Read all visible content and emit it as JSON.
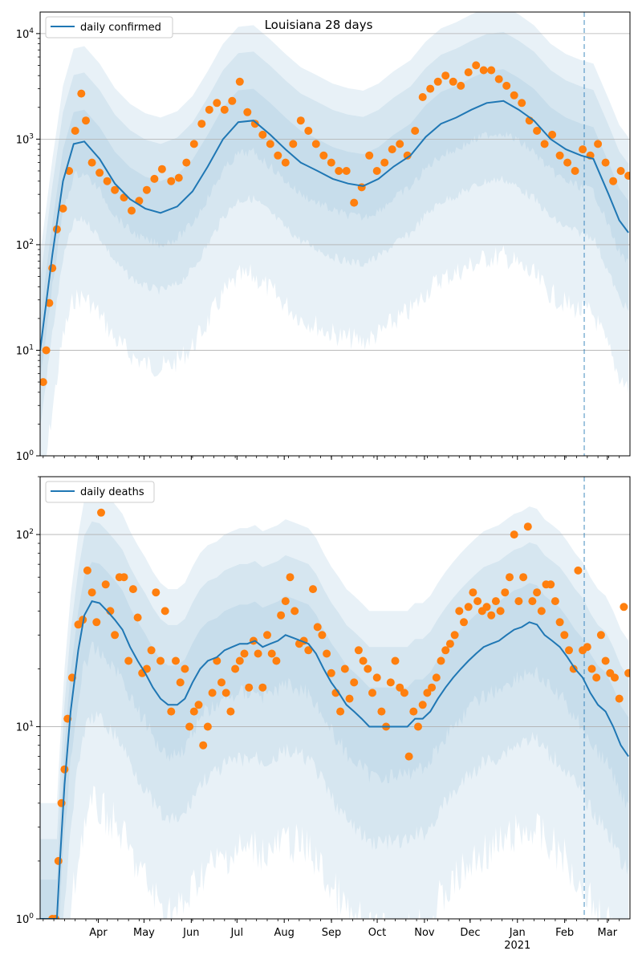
{
  "chart_data": [
    {
      "type": "line",
      "title": "Louisiana 28 days",
      "yscale": "log",
      "ylim": [
        1,
        16000
      ],
      "yticks": [
        1,
        10,
        100,
        1000,
        10000
      ],
      "ytick_labels": [
        "10^0",
        "10^1",
        "10^2",
        "10^3",
        "10^4"
      ],
      "grid": "y",
      "legend": "top-left",
      "series": [
        {
          "name": "daily confirmed",
          "type": "line",
          "color": "#1f77b4",
          "x": [
            "2020-03-07",
            "2020-03-15",
            "2020-03-22",
            "2020-03-29",
            "2020-04-05",
            "2020-04-15",
            "2020-04-25",
            "2020-05-05",
            "2020-05-15",
            "2020-05-25",
            "2020-06-05",
            "2020-06-15",
            "2020-06-25",
            "2020-07-05",
            "2020-07-15",
            "2020-07-25",
            "2020-08-05",
            "2020-08-15",
            "2020-08-25",
            "2020-09-05",
            "2020-09-15",
            "2020-09-25",
            "2020-10-05",
            "2020-10-15",
            "2020-10-25",
            "2020-11-05",
            "2020-11-15",
            "2020-11-25",
            "2020-12-05",
            "2020-12-15",
            "2020-12-25",
            "2021-01-05",
            "2021-01-15",
            "2021-01-25",
            "2021-02-05",
            "2021-02-15",
            "2021-02-25",
            "2021-03-05",
            "2021-03-15",
            "2021-03-22",
            "2021-03-28"
          ],
          "values": [
            10,
            80,
            400,
            900,
            950,
            650,
            380,
            270,
            220,
            200,
            230,
            320,
            550,
            1000,
            1450,
            1500,
            1100,
            800,
            600,
            500,
            420,
            380,
            360,
            420,
            550,
            700,
            1050,
            1400,
            1600,
            1900,
            2200,
            2300,
            1900,
            1500,
            1000,
            800,
            700,
            650,
            300,
            170,
            130
          ]
        },
        {
          "name": "",
          "type": "scatter",
          "color": "#ff7f0e",
          "x": [
            "2020-03-09",
            "2020-03-11",
            "2020-03-13",
            "2020-03-15",
            "2020-03-18",
            "2020-03-22",
            "2020-03-26",
            "2020-03-30",
            "2020-04-03",
            "2020-04-06",
            "2020-04-10",
            "2020-04-15",
            "2020-04-20",
            "2020-04-25",
            "2020-05-01",
            "2020-05-06",
            "2020-05-11",
            "2020-05-16",
            "2020-05-21",
            "2020-05-26",
            "2020-06-01",
            "2020-06-06",
            "2020-06-11",
            "2020-06-16",
            "2020-06-21",
            "2020-06-26",
            "2020-07-01",
            "2020-07-06",
            "2020-07-11",
            "2020-07-16",
            "2020-07-21",
            "2020-07-26",
            "2020-07-31",
            "2020-08-05",
            "2020-08-10",
            "2020-08-15",
            "2020-08-20",
            "2020-08-25",
            "2020-08-30",
            "2020-09-04",
            "2020-09-09",
            "2020-09-14",
            "2020-09-19",
            "2020-09-24",
            "2020-09-29",
            "2020-10-04",
            "2020-10-09",
            "2020-10-14",
            "2020-10-19",
            "2020-10-24",
            "2020-10-29",
            "2020-11-03",
            "2020-11-08",
            "2020-11-13",
            "2020-11-18",
            "2020-11-23",
            "2020-11-28",
            "2020-12-03",
            "2020-12-08",
            "2020-12-13",
            "2020-12-18",
            "2020-12-23",
            "2020-12-28",
            "2021-01-02",
            "2021-01-07",
            "2021-01-12",
            "2021-01-17",
            "2021-01-22",
            "2021-01-27",
            "2021-02-01",
            "2021-02-06",
            "2021-02-11",
            "2021-02-16",
            "2021-02-21",
            "2021-02-26",
            "2021-03-03",
            "2021-03-08",
            "2021-03-13",
            "2021-03-18",
            "2021-03-23",
            "2021-03-28"
          ],
          "values": [
            5,
            10,
            28,
            60,
            140,
            220,
            500,
            1200,
            2700,
            1500,
            600,
            480,
            400,
            330,
            280,
            210,
            260,
            330,
            420,
            520,
            400,
            430,
            600,
            900,
            1400,
            1900,
            2200,
            1900,
            2300,
            3500,
            1800,
            1400,
            1100,
            900,
            700,
            600,
            900,
            1500,
            1200,
            900,
            700,
            600,
            500,
            500,
            250,
            350,
            700,
            500,
            600,
            800,
            900,
            700,
            1200,
            2500,
            3000,
            3500,
            4000,
            3500,
            3200,
            4300,
            5000,
            4500,
            4500,
            3700,
            3200,
            2600,
            2200,
            1500,
            1200,
            900,
            1100,
            700,
            600,
            500,
            800,
            700,
            900,
            600,
            400,
            500,
            450
          ]
        }
      ]
    },
    {
      "type": "line",
      "title": "",
      "yscale": "log",
      "ylim": [
        1,
        200
      ],
      "yticks": [
        1,
        10,
        100
      ],
      "ytick_labels": [
        "10^0",
        "10^1",
        "10^2"
      ],
      "grid": "y",
      "legend": "top-left",
      "xlim": [
        "2020-03-07",
        "2021-03-29"
      ],
      "xtick_labels": [
        "Apr",
        "May",
        "Jun",
        "Jul",
        "Aug",
        "Sep",
        "Oct",
        "Nov",
        "Dec",
        "Jan",
        "Feb",
        "Mar"
      ],
      "xtick_year": "2021",
      "vline": "2021-02-27",
      "series": [
        {
          "name": "daily deaths",
          "type": "line",
          "color": "#1f77b4",
          "x": [
            "2020-03-07",
            "2020-03-18",
            "2020-03-20",
            "2020-03-23",
            "2020-03-27",
            "2020-04-01",
            "2020-04-05",
            "2020-04-10",
            "2020-04-15",
            "2020-04-20",
            "2020-04-25",
            "2020-04-30",
            "2020-05-05",
            "2020-05-10",
            "2020-05-15",
            "2020-05-20",
            "2020-05-25",
            "2020-05-30",
            "2020-06-05",
            "2020-06-10",
            "2020-06-15",
            "2020-06-20",
            "2020-06-25",
            "2020-07-01",
            "2020-07-06",
            "2020-07-11",
            "2020-07-16",
            "2020-07-21",
            "2020-07-26",
            "2020-07-31",
            "2020-08-05",
            "2020-08-10",
            "2020-08-15",
            "2020-08-20",
            "2020-08-25",
            "2020-08-30",
            "2020-09-04",
            "2020-09-09",
            "2020-09-14",
            "2020-09-19",
            "2020-09-24",
            "2020-09-29",
            "2020-10-04",
            "2020-10-09",
            "2020-10-14",
            "2020-10-19",
            "2020-10-24",
            "2020-10-29",
            "2020-11-03",
            "2020-11-08",
            "2020-11-13",
            "2020-11-18",
            "2020-11-23",
            "2020-11-28",
            "2020-12-03",
            "2020-12-08",
            "2020-12-13",
            "2020-12-18",
            "2020-12-23",
            "2020-12-28",
            "2021-01-02",
            "2021-01-07",
            "2021-01-12",
            "2021-01-17",
            "2021-01-22",
            "2021-01-27",
            "2021-02-01",
            "2021-02-06",
            "2021-02-11",
            "2021-02-16",
            "2021-02-21",
            "2021-02-26",
            "2021-03-03",
            "2021-03-08",
            "2021-03-13",
            "2021-03-18",
            "2021-03-23",
            "2021-03-28"
          ],
          "values": [
            1,
            1,
            2,
            5,
            12,
            25,
            38,
            45,
            44,
            40,
            36,
            32,
            26,
            22,
            19,
            16,
            14,
            13,
            13,
            14,
            17,
            20,
            22,
            23,
            25,
            26,
            27,
            27,
            28,
            26,
            27,
            28,
            30,
            29,
            28,
            27,
            24,
            20,
            17,
            15,
            13,
            12,
            11,
            10,
            10,
            10,
            10,
            10,
            10,
            11,
            11,
            12,
            14,
            16,
            18,
            20,
            22,
            24,
            26,
            27,
            28,
            30,
            32,
            33,
            35,
            34,
            30,
            28,
            26,
            23,
            20,
            18,
            15,
            13,
            12,
            10,
            8,
            7
          ]
        },
        {
          "name": "",
          "type": "scatter",
          "color": "#ff7f0e",
          "x": [
            "2020-03-15",
            "2020-03-17",
            "2020-03-19",
            "2020-03-21",
            "2020-03-23",
            "2020-03-25",
            "2020-03-28",
            "2020-04-01",
            "2020-04-04",
            "2020-04-07",
            "2020-04-10",
            "2020-04-13",
            "2020-04-16",
            "2020-04-19",
            "2020-04-22",
            "2020-04-25",
            "2020-04-28",
            "2020-05-01",
            "2020-05-04",
            "2020-05-07",
            "2020-05-10",
            "2020-05-13",
            "2020-05-16",
            "2020-05-19",
            "2020-05-22",
            "2020-05-25",
            "2020-05-28",
            "2020-06-01",
            "2020-06-04",
            "2020-06-07",
            "2020-06-10",
            "2020-06-13",
            "2020-06-16",
            "2020-06-19",
            "2020-06-22",
            "2020-06-25",
            "2020-06-28",
            "2020-07-01",
            "2020-07-04",
            "2020-07-07",
            "2020-07-10",
            "2020-07-13",
            "2020-07-16",
            "2020-07-19",
            "2020-07-22",
            "2020-07-25",
            "2020-07-28",
            "2020-07-31",
            "2020-08-03",
            "2020-08-06",
            "2020-08-09",
            "2020-08-12",
            "2020-08-15",
            "2020-08-18",
            "2020-08-21",
            "2020-08-24",
            "2020-08-27",
            "2020-08-30",
            "2020-09-02",
            "2020-09-05",
            "2020-09-08",
            "2020-09-11",
            "2020-09-14",
            "2020-09-17",
            "2020-09-20",
            "2020-09-23",
            "2020-09-26",
            "2020-09-29",
            "2020-10-02",
            "2020-10-05",
            "2020-10-08",
            "2020-10-11",
            "2020-10-14",
            "2020-10-17",
            "2020-10-20",
            "2020-10-23",
            "2020-10-26",
            "2020-10-29",
            "2020-11-01",
            "2020-11-04",
            "2020-11-07",
            "2020-11-10",
            "2020-11-13",
            "2020-11-16",
            "2020-11-19",
            "2020-11-22",
            "2020-11-25",
            "2020-11-28",
            "2020-12-01",
            "2020-12-04",
            "2020-12-07",
            "2020-12-10",
            "2020-12-13",
            "2020-12-16",
            "2020-12-19",
            "2020-12-22",
            "2020-12-25",
            "2020-12-28",
            "2020-12-31",
            "2021-01-03",
            "2021-01-06",
            "2021-01-09",
            "2021-01-12",
            "2021-01-15",
            "2021-01-18",
            "2021-01-21",
            "2021-01-24",
            "2021-01-27",
            "2021-01-30",
            "2021-02-02",
            "2021-02-05",
            "2021-02-08",
            "2021-02-11",
            "2021-02-14",
            "2021-02-17",
            "2021-02-20",
            "2021-02-23",
            "2021-02-26",
            "2021-03-01",
            "2021-03-04",
            "2021-03-07",
            "2021-03-10",
            "2021-03-13",
            "2021-03-16",
            "2021-03-19",
            "2021-03-22",
            "2021-03-25",
            "2021-03-28"
          ],
          "values": [
            1,
            1,
            2,
            4,
            6,
            11,
            18,
            34,
            36,
            65,
            50,
            35,
            130,
            55,
            40,
            30,
            60,
            60,
            22,
            52,
            37,
            19,
            20,
            25,
            50,
            22,
            40,
            12,
            22,
            17,
            20,
            10,
            12,
            13,
            8,
            10,
            15,
            22,
            17,
            15,
            12,
            20,
            22,
            24,
            16,
            28,
            24,
            16,
            30,
            24,
            22,
            38,
            45,
            60,
            40,
            27,
            28,
            25,
            52,
            33,
            30,
            24,
            19,
            15,
            12,
            20,
            14,
            17,
            25,
            22,
            20,
            15,
            18,
            12,
            10,
            17,
            22,
            16,
            15,
            7,
            12,
            10,
            13,
            15,
            16,
            18,
            22,
            25,
            27,
            30,
            40,
            35,
            42,
            50,
            45,
            40,
            42,
            38,
            45,
            40,
            50,
            60,
            100,
            45,
            60,
            110,
            45,
            50,
            40,
            55,
            55,
            45,
            35,
            30,
            25,
            20,
            65,
            25,
            26,
            20,
            18,
            30,
            22,
            19,
            18,
            14,
            42,
            19
          ]
        }
      ]
    }
  ]
}
